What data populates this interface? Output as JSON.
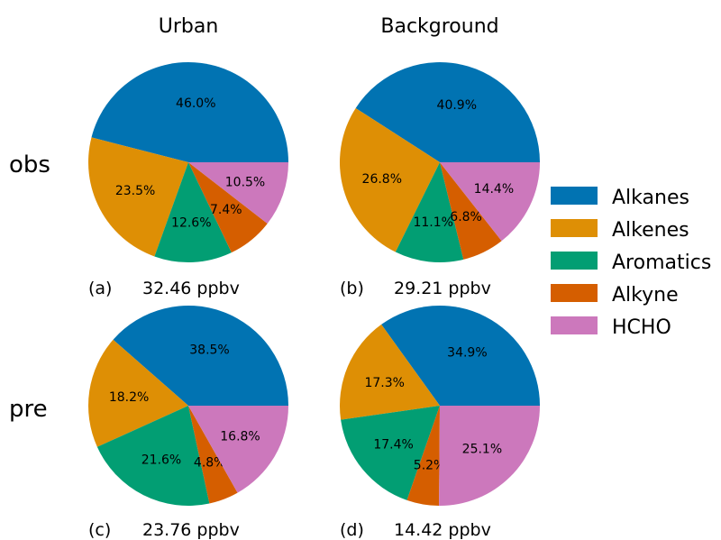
{
  "column_titles": [
    "Urban",
    "Background"
  ],
  "row_labels": [
    "obs",
    "pre"
  ],
  "legend": {
    "placement": "right",
    "entries": [
      {
        "label": "Alkanes",
        "color": "#0173b2"
      },
      {
        "label": "Alkenes",
        "color": "#de8f05"
      },
      {
        "label": "Aromatics",
        "color": "#029e73"
      },
      {
        "label": "Alkyne",
        "color": "#d55e00"
      },
      {
        "label": "HCHO",
        "color": "#cc78bc"
      }
    ]
  },
  "chart_data": [
    {
      "type": "pie",
      "panel": "(a)",
      "column": "Urban",
      "row": "obs",
      "total_label": "32.46 ppbv",
      "categories": [
        "Alkanes",
        "Alkenes",
        "Aromatics",
        "Alkyne",
        "HCHO"
      ],
      "values": [
        46.0,
        23.5,
        12.6,
        7.4,
        10.5
      ],
      "value_labels": [
        "46.0%",
        "23.5%",
        "12.6%",
        "7.4%",
        "10.5%"
      ]
    },
    {
      "type": "pie",
      "panel": "(b)",
      "column": "Background",
      "row": "obs",
      "total_label": "29.21 ppbv",
      "categories": [
        "Alkanes",
        "Alkenes",
        "Aromatics",
        "Alkyne",
        "HCHO"
      ],
      "values": [
        40.9,
        26.8,
        11.1,
        6.8,
        14.4
      ],
      "value_labels": [
        "40.9%",
        "26.8%",
        "11.1%",
        "6.8%",
        "14.4%"
      ]
    },
    {
      "type": "pie",
      "panel": "(c)",
      "column": "Urban",
      "row": "pre",
      "total_label": "23.76 ppbv",
      "categories": [
        "Alkanes",
        "Alkenes",
        "Aromatics",
        "Alkyne",
        "HCHO"
      ],
      "values": [
        38.5,
        18.2,
        21.6,
        4.8,
        16.8
      ],
      "value_labels": [
        "38.5%",
        "18.2%",
        "21.6%",
        "4.8%",
        "16.8%"
      ]
    },
    {
      "type": "pie",
      "panel": "(d)",
      "column": "Background",
      "row": "pre",
      "total_label": "14.42 ppbv",
      "categories": [
        "Alkanes",
        "Alkenes",
        "Aromatics",
        "Alkyne",
        "HCHO"
      ],
      "values": [
        34.9,
        17.3,
        17.4,
        5.2,
        25.1
      ],
      "value_labels": [
        "34.9%",
        "17.3%",
        "17.4%",
        "5.2%",
        "25.1%"
      ]
    }
  ]
}
